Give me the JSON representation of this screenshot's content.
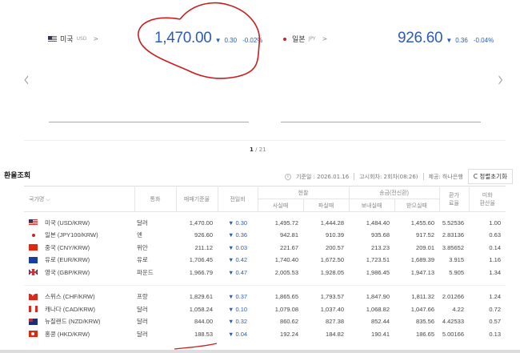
{
  "cards": [
    {
      "country": "미국",
      "code": "USD",
      "flag": "us-flag",
      "rate": "1,470.00",
      "change": "0.30",
      "change_pct": "-0.02%",
      "direction": "down"
    },
    {
      "country": "일본",
      "code": "JPY",
      "flag": "jp-flag",
      "rate": "926.60",
      "change": "0.36",
      "change_pct": "-0.04%",
      "direction": "down"
    }
  ],
  "pager": {
    "current": "1",
    "total": "/ 21"
  },
  "section": {
    "title": "환율조회",
    "base_date": "기준일 : 2026.01.16",
    "notice": "고시회차: 2회차(08:26)",
    "provider": "제공: 하나은행",
    "reset_label": "정렬초기화"
  },
  "table": {
    "headers": {
      "country": "국가명 ⌵",
      "currency": "통화",
      "base": "매매기준율",
      "diff": "전일비",
      "cash": "현찰",
      "cash_buy": "사실때",
      "cash_sell": "파실때",
      "wire": "송금(전신환)",
      "wire_send": "보내실때",
      "wire_recv": "받으실때",
      "fee": "환가\n료율",
      "usd": "미화\n환산율"
    },
    "rows": [
      {
        "flag": "us",
        "name": "미국 (USD/KRW)",
        "cur": "달러",
        "base": "1,470.00",
        "diff": "▼ 0.30",
        "cb": "1,495.72",
        "cs": "1,444.28",
        "ws": "1,484.40",
        "wr": "1,455.60",
        "fee": "5.52536",
        "usd": "1.00"
      },
      {
        "flag": "jp",
        "name": "일본 (JPY100/KRW)",
        "cur": "엔",
        "base": "926.60",
        "diff": "▼ 0.36",
        "cb": "942.81",
        "cs": "910.39",
        "ws": "935.68",
        "wr": "917.52",
        "fee": "2.83136",
        "usd": "0.63"
      },
      {
        "flag": "cn",
        "name": "중국 (CNY/KRW)",
        "cur": "위안",
        "base": "211.12",
        "diff": "▼ 0.03",
        "cb": "221.67",
        "cs": "200.57",
        "ws": "213.23",
        "wr": "209.01",
        "fee": "3.85652",
        "usd": "0.14"
      },
      {
        "flag": "eu",
        "name": "유로 (EUR/KRW)",
        "cur": "유로",
        "base": "1,706.45",
        "diff": "▼ 0.42",
        "cb": "1,740.40",
        "cs": "1,672.50",
        "ws": "1,723.51",
        "wr": "1,689.39",
        "fee": "3.915",
        "usd": "1.16"
      },
      {
        "flag": "gb",
        "name": "영국 (GBP/KRW)",
        "cur": "파운드",
        "base": "1,966.79",
        "diff": "▼ 0.47",
        "cb": "2,005.53",
        "cs": "1,928.05",
        "ws": "1,986.45",
        "wr": "1,947.13",
        "fee": "5.905",
        "usd": "1.34"
      },
      {
        "flag": "ch",
        "name": "스위스 (CHF/KRW)",
        "cur": "프랑",
        "base": "1,829.61",
        "diff": "▼ 0.37",
        "cb": "1,865.65",
        "cs": "1,793.57",
        "ws": "1,847.90",
        "wr": "1,811.32",
        "fee": "2.01266",
        "usd": "1.24"
      },
      {
        "flag": "ca",
        "name": "캐나다 (CAD/KRW)",
        "cur": "달러",
        "base": "1,058.24",
        "diff": "▼ 0.10",
        "cb": "1,079.08",
        "cs": "1,037.40",
        "ws": "1,068.82",
        "wr": "1,047.66",
        "fee": "4.22",
        "usd": "0.72"
      },
      {
        "flag": "nz",
        "name": "뉴질랜드 (NZD/KRW)",
        "cur": "달러",
        "base": "844.00",
        "diff": "▼ 0.32",
        "cb": "860.62",
        "cs": "827.38",
        "ws": "852.44",
        "wr": "835.56",
        "fee": "4.42533",
        "usd": "0.57"
      },
      {
        "flag": "hk",
        "name": "홍콩 (HKD/KRW)",
        "cur": "달러",
        "base": "188.53",
        "diff": "▼ 0.04",
        "cb": "192.24",
        "cs": "184.82",
        "ws": "190.41",
        "wr": "186.65",
        "fee": "5.00166",
        "usd": "0.13"
      }
    ]
  },
  "colors": {
    "accent": "#2b5cb8",
    "annotation": "#c81e1e"
  }
}
